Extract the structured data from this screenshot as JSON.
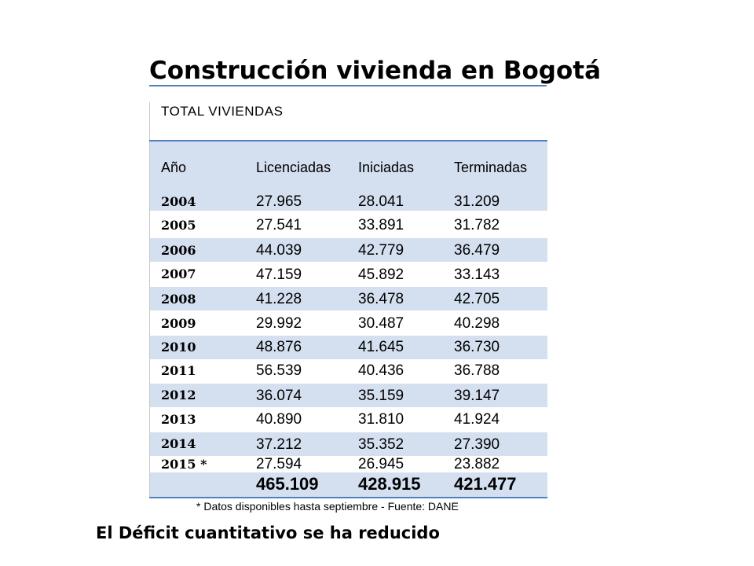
{
  "title": "Construcción vivienda en Bogotá",
  "table": {
    "caption": "TOTAL VIVIENDAS",
    "headers": [
      "Año",
      "Licenciadas",
      "Iniciadas",
      "Terminadas"
    ],
    "rows": [
      {
        "year": "2004",
        "licenciadas": "27.965",
        "iniciadas": "28.041",
        "terminadas": "31.209"
      },
      {
        "year": "2005",
        "licenciadas": "27.541",
        "iniciadas": "33.891",
        "terminadas": "31.782"
      },
      {
        "year": "2006",
        "licenciadas": "44.039",
        "iniciadas": "42.779",
        "terminadas": "36.479"
      },
      {
        "year": "2007",
        "licenciadas": "47.159",
        "iniciadas": "45.892",
        "terminadas": "33.143"
      },
      {
        "year": "2008",
        "licenciadas": "41.228",
        "iniciadas": "36.478",
        "terminadas": "42.705"
      },
      {
        "year": "2009",
        "licenciadas": "29.992",
        "iniciadas": "30.487",
        "terminadas": "40.298"
      },
      {
        "year": "2010",
        "licenciadas": "48.876",
        "iniciadas": "41.645",
        "terminadas": "36.730"
      },
      {
        "year": "2011",
        "licenciadas": "56.539",
        "iniciadas": "40.436",
        "terminadas": "36.788"
      },
      {
        "year": "2012",
        "licenciadas": "36.074",
        "iniciadas": "35.159",
        "terminadas": "39.147"
      },
      {
        "year": "2013",
        "licenciadas": "40.890",
        "iniciadas": "31.810",
        "terminadas": "41.924"
      },
      {
        "year": "2014",
        "licenciadas": "37.212",
        "iniciadas": "35.352",
        "terminadas": "27.390"
      },
      {
        "year": "2015 *",
        "licenciadas": "27.594",
        "iniciadas": "26.945",
        "terminadas": "23.882"
      }
    ],
    "totals": {
      "licenciadas": "465.109",
      "iniciadas": "428.915",
      "terminadas": "421.477"
    },
    "note": "* Datos disponibles hasta septiembre - Fuente: DANE"
  },
  "subtitle": "El Déficit cuantitativo se ha reducido",
  "colors": {
    "row_shade": "#d4dff0",
    "rule": "#4f81bd"
  }
}
